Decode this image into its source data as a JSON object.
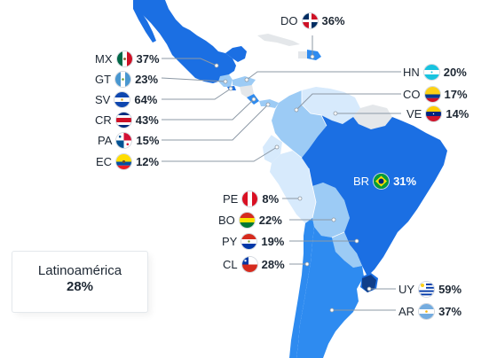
{
  "summary": {
    "region": "Latinoamérica",
    "value": "28%"
  },
  "colors": {
    "dark": "#1b6fe3",
    "mid": "#2e8bf0",
    "light": "#9ccbf5",
    "lightest": "#d7eafc",
    "nodata": "#e4e7ea",
    "line": "#8c98a5",
    "dot": "#ffffff"
  },
  "countries": [
    {
      "code": "DO",
      "value": "36%",
      "flag": "do"
    },
    {
      "code": "MX",
      "value": "37%",
      "flag": "mx"
    },
    {
      "code": "HN",
      "value": "20%",
      "flag": "hn"
    },
    {
      "code": "GT",
      "value": "23%",
      "flag": "gt"
    },
    {
      "code": "SV",
      "value": "64%",
      "flag": "sv"
    },
    {
      "code": "CO",
      "value": "17%",
      "flag": "co"
    },
    {
      "code": "CR",
      "value": "43%",
      "flag": "cr"
    },
    {
      "code": "VE",
      "value": "14%",
      "flag": "ve"
    },
    {
      "code": "PA",
      "value": "15%",
      "flag": "pa"
    },
    {
      "code": "EC",
      "value": "12%",
      "flag": "ec"
    },
    {
      "code": "BR",
      "value": "31%",
      "flag": "br"
    },
    {
      "code": "PE",
      "value": "8%",
      "flag": "pe"
    },
    {
      "code": "BO",
      "value": "22%",
      "flag": "bo"
    },
    {
      "code": "PY",
      "value": "19%",
      "flag": "py"
    },
    {
      "code": "CL",
      "value": "28%",
      "flag": "cl"
    },
    {
      "code": "UY",
      "value": "59%",
      "flag": "uy"
    },
    {
      "code": "AR",
      "value": "37%",
      "flag": "ar"
    }
  ]
}
